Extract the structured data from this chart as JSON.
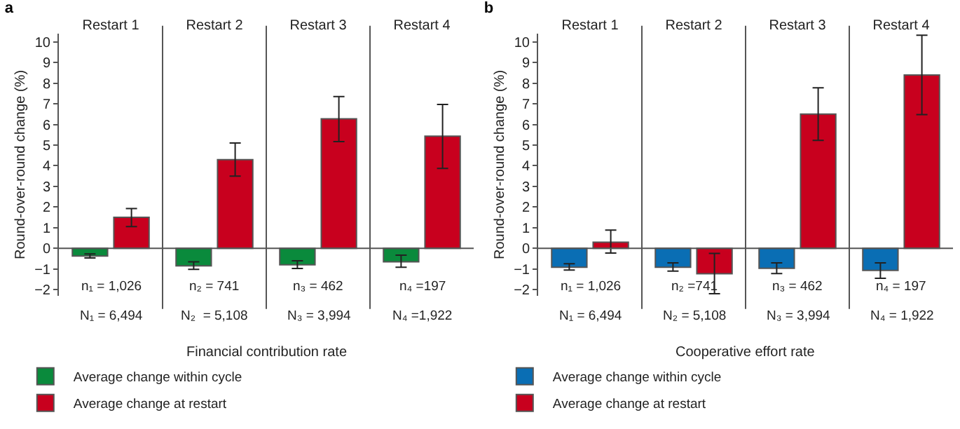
{
  "chart_data": [
    {
      "type": "bar",
      "title": "a",
      "ylabel": "Round-over-round change (%)",
      "xlabel": "Financial contribution rate",
      "categories": [
        "Restart 1",
        "Restart 2",
        "Restart 3",
        "Restart 4"
      ],
      "series": [
        {
          "name": "Average change within cycle",
          "color": "#0a8a3c",
          "values": [
            -0.37,
            -0.85,
            -0.8,
            -0.65
          ],
          "errors": [
            [
              -0.47,
              -0.27
            ],
            [
              -1.02,
              -0.65
            ],
            [
              -0.98,
              -0.6
            ],
            [
              -0.92,
              -0.33
            ]
          ]
        },
        {
          "name": "Average change at restart",
          "color": "#c8001e",
          "values": [
            1.5,
            4.3,
            6.27,
            5.43
          ],
          "errors": [
            [
              1.05,
              1.93
            ],
            [
              3.5,
              5.1
            ],
            [
              5.17,
              7.35
            ],
            [
              3.87,
              6.97
            ]
          ]
        }
      ],
      "ylim": [
        -2.3,
        10.4
      ],
      "yticks": [
        -2,
        -1,
        0,
        1,
        2,
        3,
        4,
        5,
        6,
        7,
        8,
        9,
        10
      ],
      "grid": false,
      "legend": "bottom",
      "ref_lines": [
        {
          "axis": "y",
          "value": 0
        }
      ],
      "annotations": [
        "n₁ = 1,026",
        "n₂ = 741",
        "n₃ = 462",
        "n₄ =197",
        "N₁ = 6,494",
        "N₂  = 5,108",
        "N₃ = 3,994",
        "N₄ =1,922"
      ]
    },
    {
      "type": "bar",
      "title": "b",
      "ylabel": "Round-over-round change (%)",
      "xlabel": "Cooperative effort rate",
      "categories": [
        "Restart 1",
        "Restart 2",
        "Restart 3",
        "Restart 4"
      ],
      "series": [
        {
          "name": "Average change within cycle",
          "color": "#0a6eb4",
          "values": [
            -0.92,
            -0.92,
            -0.97,
            -1.07
          ],
          "errors": [
            [
              -1.05,
              -0.75
            ],
            [
              -1.1,
              -0.7
            ],
            [
              -1.22,
              -0.7
            ],
            [
              -1.45,
              -0.7
            ]
          ]
        },
        {
          "name": "Average change at restart",
          "color": "#c8001e",
          "values": [
            0.3,
            -1.23,
            6.5,
            8.4
          ],
          "errors": [
            [
              -0.23,
              0.88
            ],
            [
              -2.2,
              -0.25
            ],
            [
              5.23,
              7.78
            ],
            [
              6.48,
              10.32
            ]
          ]
        }
      ],
      "ylim": [
        -2.3,
        10.4
      ],
      "yticks": [
        -2,
        -1,
        0,
        1,
        2,
        3,
        4,
        5,
        6,
        7,
        8,
        9,
        10
      ],
      "grid": false,
      "legend": "bottom",
      "ref_lines": [
        {
          "axis": "y",
          "value": 0
        }
      ],
      "annotations": [
        "n₁ = 1,026",
        "n₂ =741",
        "n₃ = 462",
        "n₄ = 197",
        "N₁ = 6,494",
        "N₂ = 5,108",
        "N₃ = 3,994",
        "N₄ = 1,922"
      ]
    }
  ]
}
